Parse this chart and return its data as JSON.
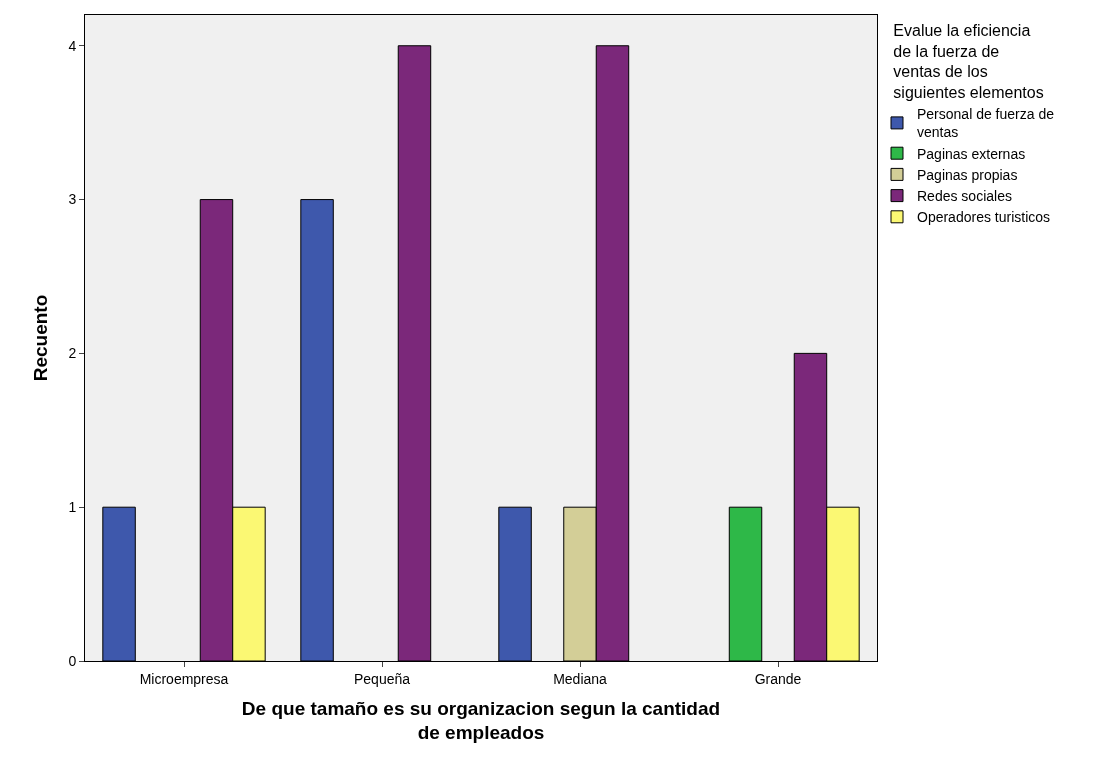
{
  "chart_data": {
    "type": "bar",
    "xlabel": "De que tamaño es su organizacion segun la cantidad de empleados",
    "ylabel": "Recuento",
    "legend_title": "Evalue la eficiencia de la fuerza de ventas de los siguientes elementos",
    "categories": [
      "Microempresa",
      "Pequeña",
      "Mediana",
      "Grande"
    ],
    "series": [
      {
        "name": "Personal de fuerza de ventas",
        "color": "#3e58ac",
        "values": [
          1,
          3,
          1,
          null
        ]
      },
      {
        "name": "Paginas externas",
        "color": "#2eb848",
        "values": [
          null,
          null,
          null,
          1
        ]
      },
      {
        "name": "Paginas propias",
        "color": "#d3ce97",
        "values": [
          null,
          null,
          1,
          null
        ]
      },
      {
        "name": "Redes sociales",
        "color": "#7b287a",
        "values": [
          3,
          4,
          4,
          2
        ]
      },
      {
        "name": "Operadores turisticos",
        "color": "#fbf873",
        "values": [
          1,
          null,
          null,
          1
        ]
      }
    ],
    "ylim": [
      0,
      4.2
    ],
    "yticks": [
      0,
      1,
      2,
      3,
      4
    ],
    "grid": false,
    "legend": "right"
  }
}
